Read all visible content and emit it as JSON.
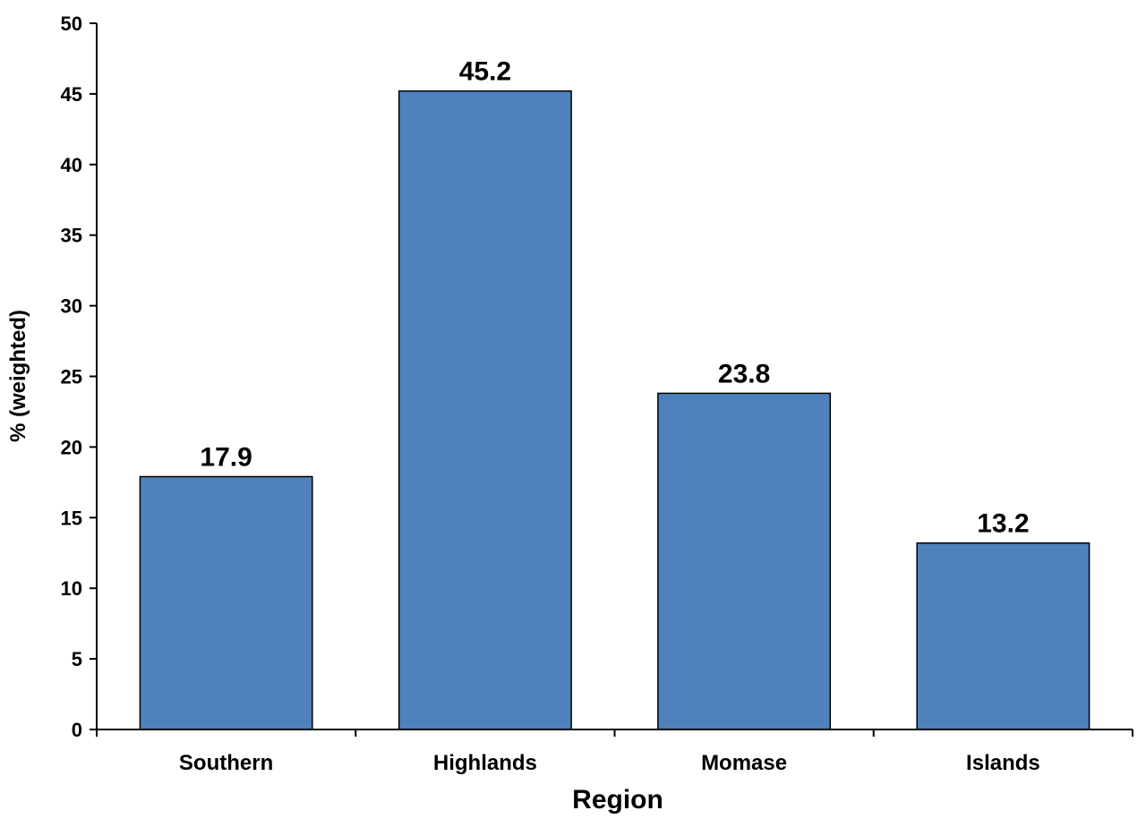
{
  "chart_data": {
    "type": "bar",
    "categories": [
      "Southern",
      "Highlands",
      "Momase",
      "Islands"
    ],
    "values": [
      17.9,
      45.2,
      23.8,
      13.2
    ],
    "data_labels": [
      "17.9",
      "45.2",
      "23.8",
      "13.2"
    ],
    "xlabel": "Region",
    "ylabel": "% (weighted)",
    "ylim": [
      0,
      50
    ],
    "yticks": [
      0,
      5,
      10,
      15,
      20,
      25,
      30,
      35,
      40,
      45,
      50
    ],
    "grid": false,
    "legend": "none",
    "bar_color": "#4f81bd",
    "bar_outline_color": "#000000"
  }
}
